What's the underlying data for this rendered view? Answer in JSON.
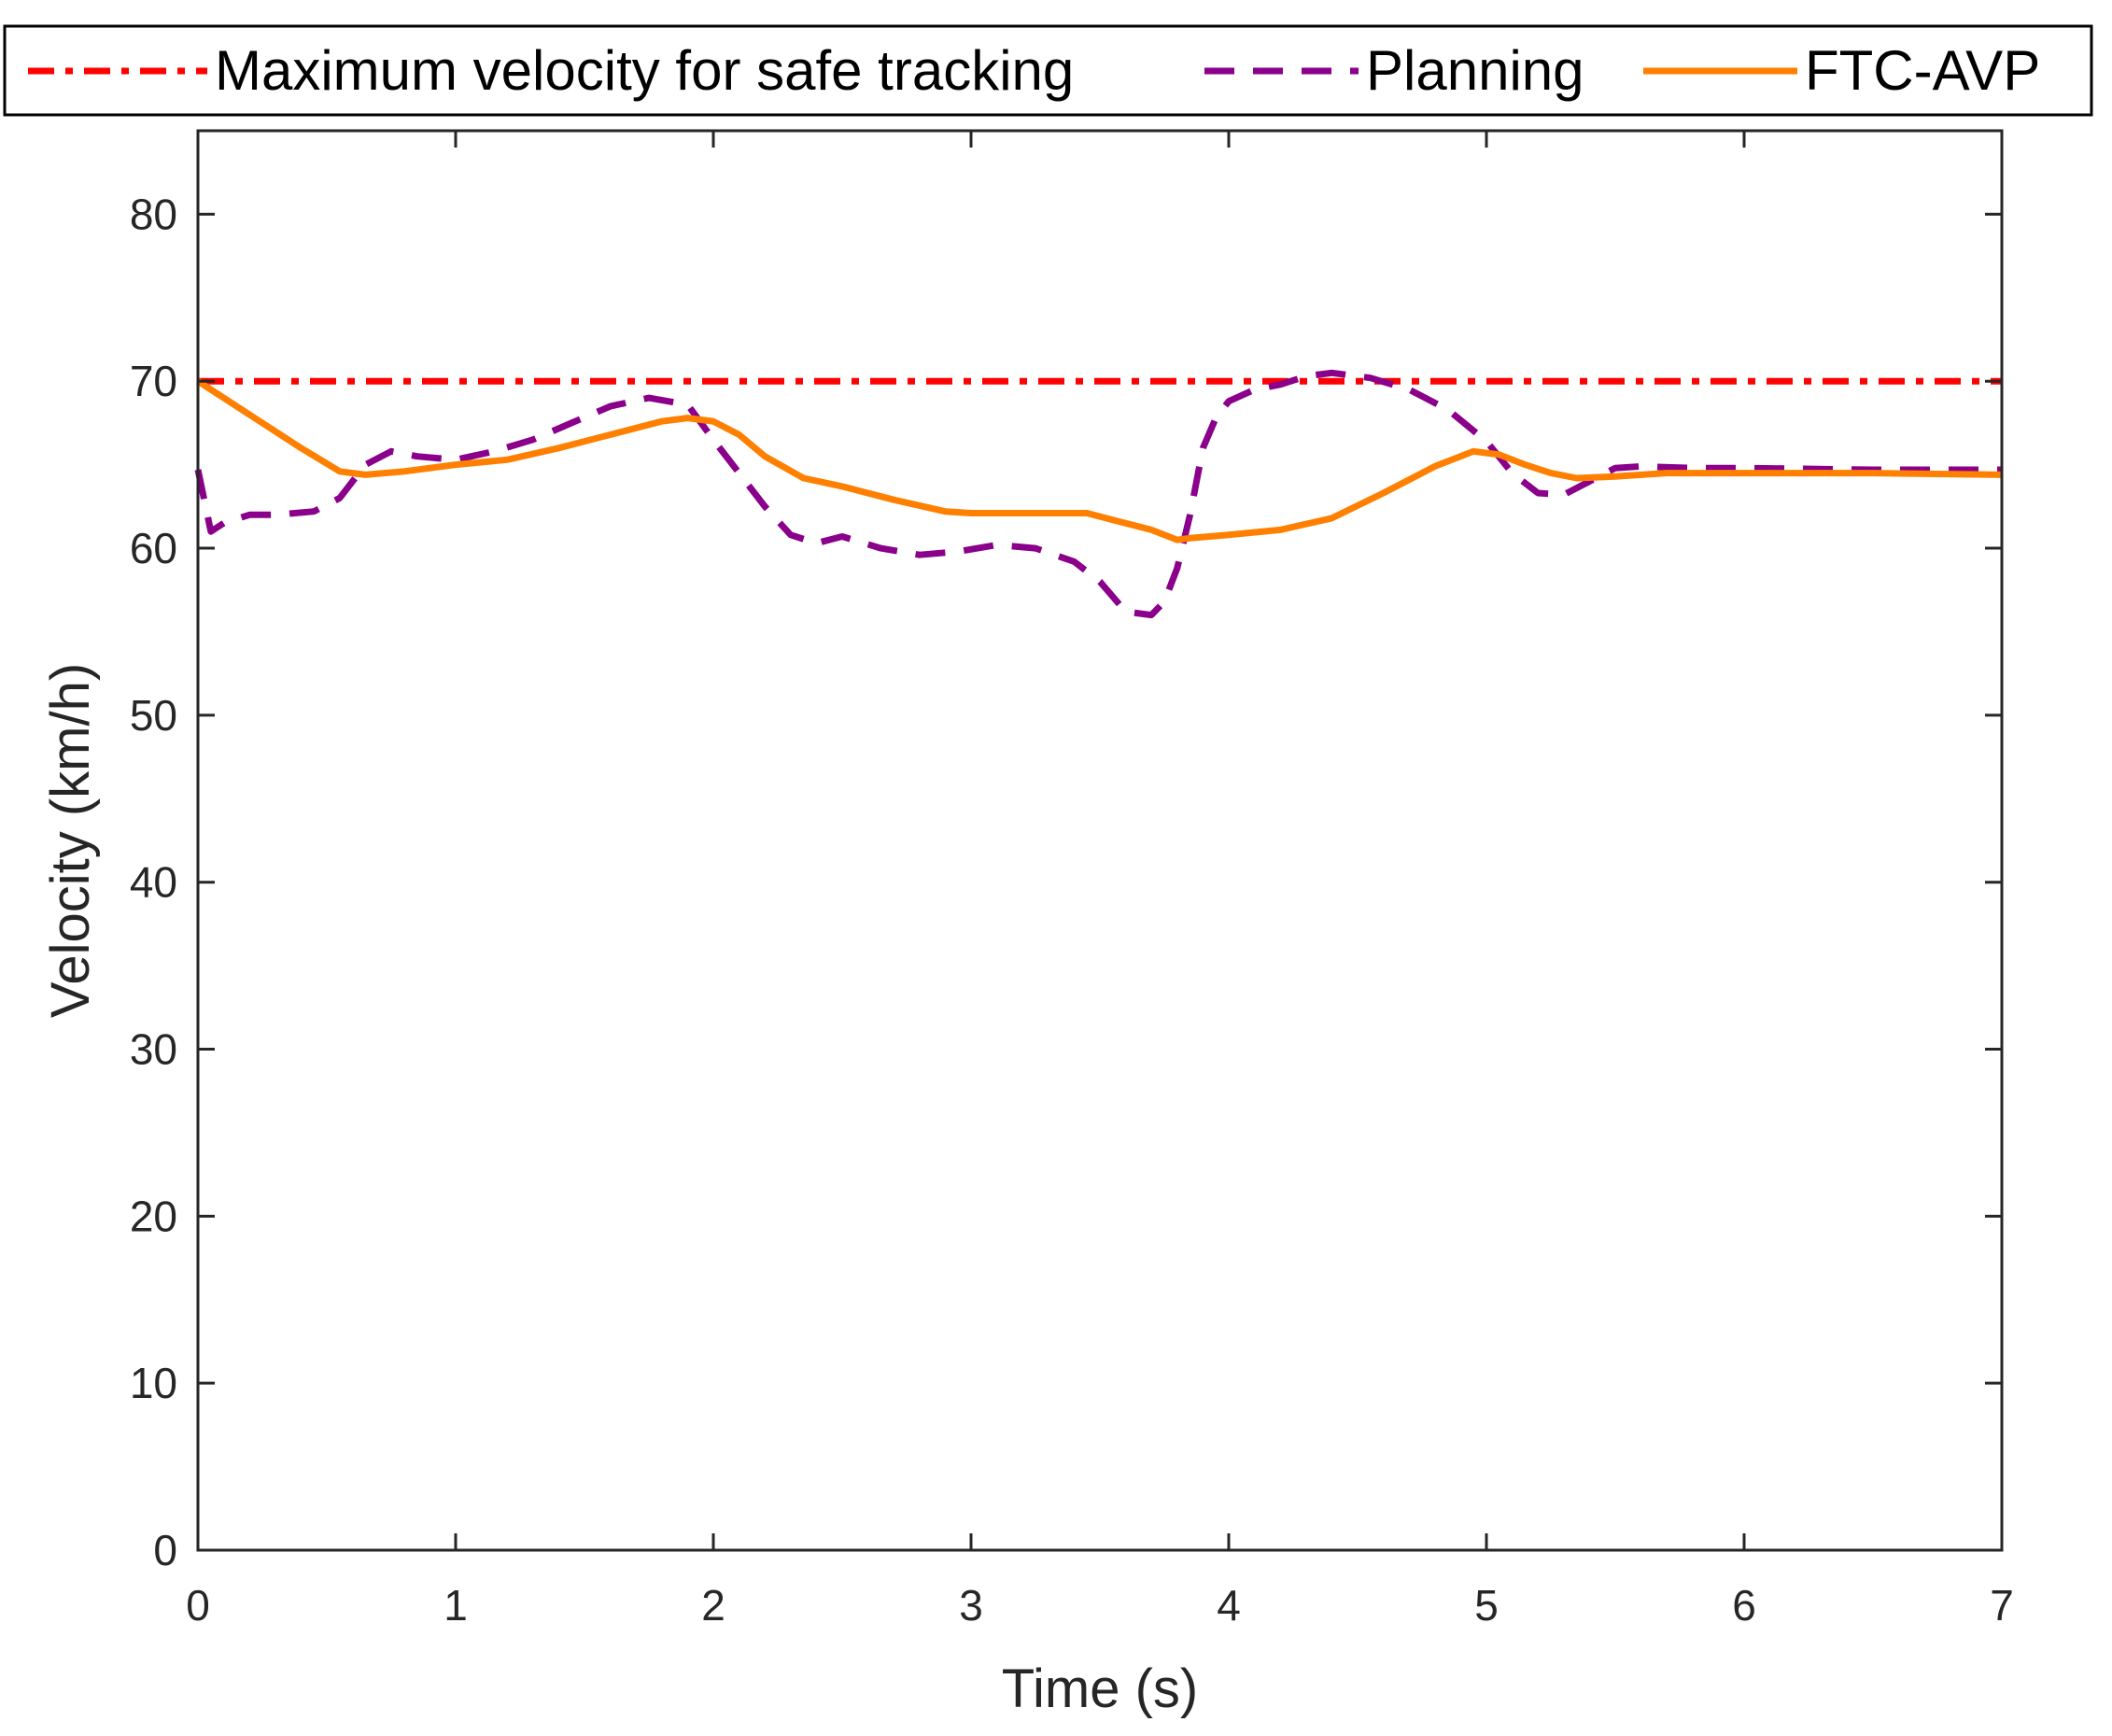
{
  "chart_data": {
    "type": "line",
    "title": "",
    "xlabel": "Time (s)",
    "ylabel": "Velocity (km/h)",
    "xlim": [
      0,
      7
    ],
    "ylim": [
      0,
      85
    ],
    "xticks": [
      0,
      1,
      2,
      3,
      4,
      5,
      6,
      7
    ],
    "yticks": [
      0,
      10,
      20,
      30,
      40,
      50,
      60,
      70,
      80
    ],
    "grid": false,
    "legend_position": "top, outside axes",
    "series": [
      {
        "name": "Maximum velocity for safe tracking",
        "style": "dash-dot",
        "color": "#ff0000",
        "x": [
          0,
          7
        ],
        "y": [
          70,
          70
        ]
      },
      {
        "name": "Planning",
        "style": "dashed",
        "color": "#8b008b",
        "x": [
          0,
          0.05,
          0.1,
          0.2,
          0.3,
          0.45,
          0.55,
          0.65,
          0.75,
          0.85,
          1.0,
          1.15,
          1.3,
          1.45,
          1.6,
          1.75,
          1.9,
          2.0,
          2.1,
          2.2,
          2.3,
          2.4,
          2.5,
          2.65,
          2.8,
          2.95,
          3.1,
          3.25,
          3.4,
          3.5,
          3.6,
          3.7,
          3.75,
          3.8,
          3.85,
          3.9,
          3.95,
          4.0,
          4.1,
          4.2,
          4.3,
          4.4,
          4.55,
          4.7,
          4.85,
          5.0,
          5.1,
          5.2,
          5.3,
          5.4,
          5.5,
          5.6,
          5.8,
          6.0,
          6.5,
          7.0
        ],
        "y": [
          64.7,
          61.0,
          61.5,
          62.0,
          62.0,
          62.2,
          63.0,
          65.0,
          65.8,
          65.5,
          65.3,
          65.8,
          66.5,
          67.5,
          68.5,
          69.0,
          68.6,
          66.5,
          64.5,
          62.5,
          60.8,
          60.3,
          60.7,
          60.0,
          59.6,
          59.8,
          60.2,
          60.0,
          59.2,
          58.0,
          56.2,
          56.0,
          56.8,
          58.8,
          62.0,
          66.0,
          67.8,
          68.8,
          69.5,
          69.8,
          70.3,
          70.5,
          70.2,
          69.5,
          68.3,
          66.4,
          64.5,
          63.3,
          63.2,
          64.0,
          64.8,
          64.9,
          64.8,
          64.8,
          64.7,
          64.7
        ]
      },
      {
        "name": "FTC-AVP",
        "style": "solid",
        "color": "#ff8000",
        "x": [
          0,
          0.2,
          0.4,
          0.55,
          0.65,
          0.8,
          1.0,
          1.2,
          1.4,
          1.6,
          1.8,
          1.9,
          2.0,
          2.1,
          2.2,
          2.35,
          2.5,
          2.7,
          2.9,
          3.0,
          3.2,
          3.45,
          3.55,
          3.7,
          3.8,
          3.85,
          4.0,
          4.2,
          4.4,
          4.6,
          4.8,
          4.95,
          5.05,
          5.15,
          5.25,
          5.35,
          5.5,
          5.7,
          6.0,
          6.5,
          7.0
        ],
        "y": [
          70.0,
          68.0,
          66.0,
          64.6,
          64.4,
          64.6,
          65.0,
          65.3,
          66.0,
          66.8,
          67.6,
          67.8,
          67.6,
          66.8,
          65.5,
          64.2,
          63.7,
          62.9,
          62.2,
          62.1,
          62.1,
          62.1,
          61.7,
          61.1,
          60.5,
          60.6,
          60.8,
          61.1,
          61.8,
          63.3,
          64.9,
          65.8,
          65.6,
          65.0,
          64.5,
          64.2,
          64.3,
          64.5,
          64.5,
          64.5,
          64.4
        ]
      }
    ]
  }
}
